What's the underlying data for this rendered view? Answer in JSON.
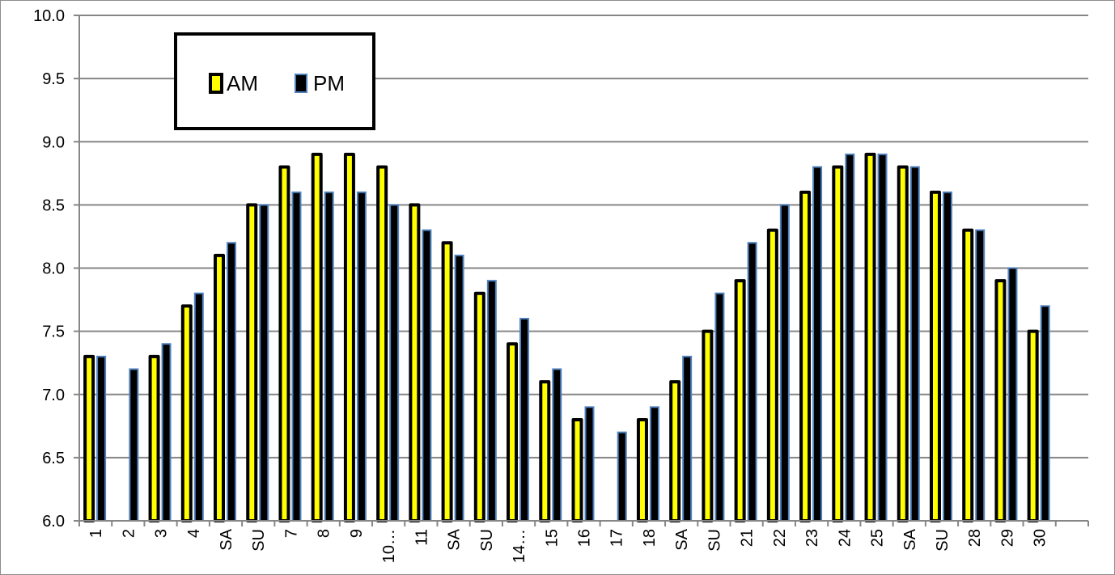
{
  "chart_data": {
    "type": "bar",
    "title": "",
    "xlabel": "",
    "ylabel": "",
    "ylim": [
      6.0,
      10.0
    ],
    "yticks": [
      "6.0",
      "6.5",
      "7.0",
      "7.5",
      "8.0",
      "8.5",
      "9.0",
      "9.5",
      "10.0"
    ],
    "grid": true,
    "legend": "top-left",
    "categories": [
      "1",
      "2",
      "3",
      "4",
      "SA",
      "SU",
      "7",
      "8",
      "9",
      "10…",
      "11",
      "SA",
      "SU",
      "14…",
      "15",
      "16",
      "17",
      "18",
      "SA",
      "SU",
      "21",
      "22",
      "23",
      "24",
      "25",
      "SA",
      "SU",
      "28",
      "29",
      "30"
    ],
    "series": [
      {
        "name": "AM",
        "color": "#ffff00",
        "border": "#000000",
        "values": [
          7.3,
          null,
          7.3,
          7.7,
          8.1,
          8.5,
          8.8,
          8.9,
          8.9,
          8.8,
          8.5,
          8.2,
          7.8,
          7.4,
          7.1,
          6.8,
          null,
          6.8,
          7.1,
          7.5,
          7.9,
          8.3,
          8.6,
          8.8,
          8.9,
          8.8,
          8.6,
          8.3,
          7.9,
          7.5
        ]
      },
      {
        "name": "PM",
        "color": "#000000",
        "border": "#4f81bd",
        "values": [
          7.3,
          7.2,
          7.4,
          7.8,
          8.2,
          8.5,
          8.6,
          8.6,
          8.6,
          8.5,
          8.3,
          8.1,
          7.9,
          7.6,
          7.2,
          6.9,
          6.7,
          6.9,
          7.3,
          7.8,
          8.2,
          8.5,
          8.8,
          8.9,
          8.9,
          8.8,
          8.6,
          8.3,
          8.0,
          7.7
        ]
      }
    ]
  }
}
